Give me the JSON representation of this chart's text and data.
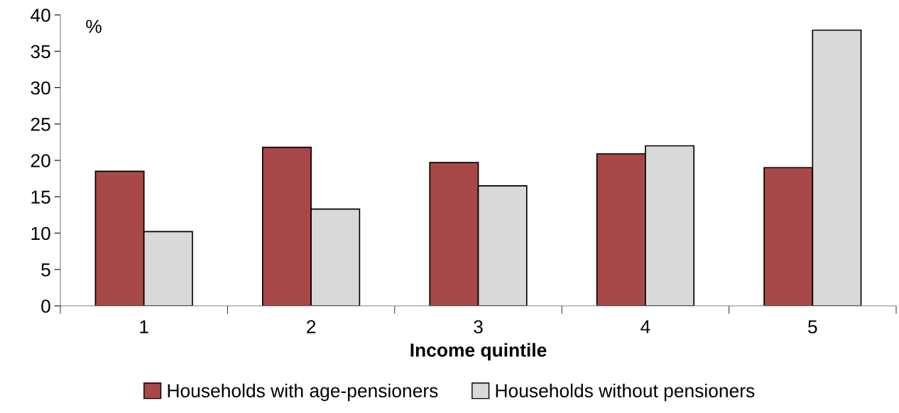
{
  "chart_data": {
    "type": "bar",
    "xlabel": "Income quintile",
    "ylabel": "%",
    "categories": [
      "1",
      "2",
      "3",
      "4",
      "5"
    ],
    "series": [
      {
        "name": "Households with age-pensioners",
        "color": "#a84848",
        "values": [
          18.5,
          21.8,
          19.7,
          20.9,
          19.0
        ]
      },
      {
        "name": "Households without pensioners",
        "color": "#d9d9d9",
        "values": [
          10.2,
          13.3,
          16.5,
          22.0,
          37.9
        ]
      }
    ],
    "ylim": [
      0,
      40
    ],
    "yticks": [
      0,
      5,
      10,
      15,
      20,
      25,
      30,
      35,
      40
    ],
    "grid": false,
    "legend": "bottom"
  }
}
